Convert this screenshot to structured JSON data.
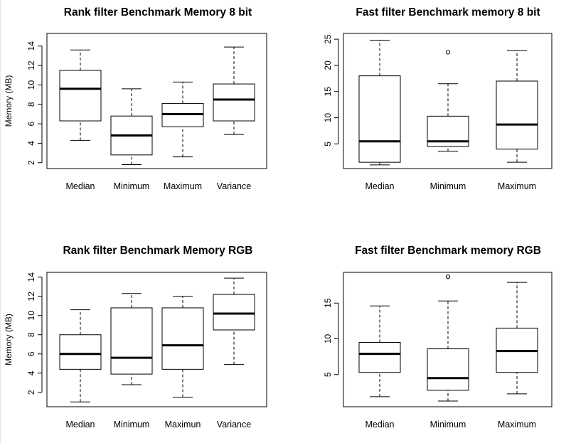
{
  "chart_data": [
    {
      "type": "boxplot",
      "title": "Rank filter Benchmark Memory 8 bit",
      "ylabel": "Memory (MB)",
      "xlabel": "",
      "categories": [
        "Median",
        "Minimum",
        "Maximum",
        "Variance"
      ],
      "ylim": [
        1.4,
        15.3
      ],
      "yticks": [
        2,
        4,
        6,
        8,
        10,
        12,
        14
      ],
      "boxes": [
        {
          "min": 4.3,
          "q1": 6.3,
          "median": 9.6,
          "q3": 11.5,
          "max": 13.6,
          "outliers": []
        },
        {
          "min": 1.8,
          "q1": 2.8,
          "median": 4.8,
          "q3": 6.8,
          "max": 9.6,
          "outliers": []
        },
        {
          "min": 2.6,
          "q1": 5.7,
          "median": 7.0,
          "q3": 8.1,
          "max": 10.3,
          "outliers": []
        },
        {
          "min": 4.9,
          "q1": 6.3,
          "median": 8.5,
          "q3": 10.1,
          "max": 13.9,
          "outliers": []
        }
      ]
    },
    {
      "type": "boxplot",
      "title": "Fast filter Benchmark memory 8 bit",
      "ylabel": "",
      "xlabel": "",
      "categories": [
        "Median",
        "Minimum",
        "Maximum"
      ],
      "ylim": [
        0.3,
        26.1
      ],
      "yticks": [
        5,
        10,
        15,
        20,
        25
      ],
      "boxes": [
        {
          "min": 1.0,
          "q1": 1.5,
          "median": 5.5,
          "q3": 18.0,
          "max": 24.8,
          "outliers": []
        },
        {
          "min": 3.6,
          "q1": 4.5,
          "median": 5.5,
          "q3": 10.3,
          "max": 16.5,
          "outliers": [
            22.5
          ]
        },
        {
          "min": 1.5,
          "q1": 4.0,
          "median": 8.7,
          "q3": 17.0,
          "max": 22.8,
          "outliers": []
        }
      ]
    },
    {
      "type": "boxplot",
      "title": "Rank filter Benchmark Memory RGB",
      "ylabel": "Memory (MB)",
      "xlabel": "",
      "categories": [
        "Median",
        "Minimum",
        "Maximun",
        "Variance"
      ],
      "ylim": [
        0.5,
        14.5
      ],
      "yticks": [
        2,
        4,
        6,
        8,
        10,
        12,
        14
      ],
      "boxes": [
        {
          "min": 1.0,
          "q1": 4.4,
          "median": 6.0,
          "q3": 8.0,
          "max": 10.6,
          "outliers": []
        },
        {
          "min": 2.8,
          "q1": 3.9,
          "median": 5.6,
          "q3": 10.8,
          "max": 12.3,
          "outliers": []
        },
        {
          "min": 1.5,
          "q1": 4.4,
          "median": 6.9,
          "q3": 10.8,
          "max": 12.0,
          "outliers": []
        },
        {
          "min": 4.9,
          "q1": 8.5,
          "median": 10.2,
          "q3": 12.2,
          "max": 13.9,
          "outliers": []
        }
      ]
    },
    {
      "type": "boxplot",
      "title": "Fast filter Benchmark memory RGB",
      "ylabel": "",
      "xlabel": "",
      "categories": [
        "Median",
        "Minimum",
        "Maximum"
      ],
      "ylim": [
        0.5,
        19.3
      ],
      "yticks": [
        5,
        10,
        15
      ],
      "boxes": [
        {
          "min": 1.9,
          "q1": 5.3,
          "median": 7.9,
          "q3": 9.5,
          "max": 14.6,
          "outliers": []
        },
        {
          "min": 1.3,
          "q1": 2.8,
          "median": 4.5,
          "q3": 8.6,
          "max": 15.3,
          "outliers": [
            18.7
          ]
        },
        {
          "min": 2.3,
          "q1": 5.3,
          "median": 8.3,
          "q3": 11.5,
          "max": 17.9,
          "outliers": []
        }
      ]
    }
  ]
}
